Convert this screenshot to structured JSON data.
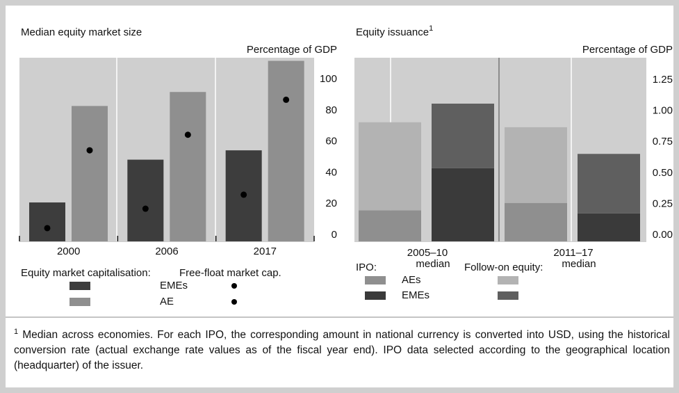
{
  "chart_data": [
    {
      "type": "bar",
      "title": "Median equity market size",
      "unit": "Percentage of GDP",
      "categories": [
        "2000",
        "2006",
        "2017"
      ],
      "series": [
        {
          "name": "EMEs",
          "color": "#3d3d3d",
          "values": [
            25,
            52.5,
            58.5
          ],
          "mark": "bar",
          "slot": 0,
          "group": 0
        },
        {
          "name": "AE",
          "color": "#8f8f8f",
          "values": [
            87,
            96,
            116
          ],
          "mark": "bar",
          "slot": 1,
          "group": 0
        },
        {
          "name": "EMEs",
          "color": "#000000",
          "values": [
            8.5,
            21,
            30
          ],
          "mark": "dot",
          "slot": 0,
          "group": 1
        },
        {
          "name": "AE",
          "color": "#000000",
          "values": [
            58.5,
            68.5,
            91
          ],
          "mark": "dot",
          "slot": 1,
          "group": 1
        }
      ],
      "legend_groups": [
        "Equity market capitalisation:",
        "Free-float market cap."
      ],
      "ylim": [
        0,
        118
      ],
      "yticks": [
        0,
        20,
        40,
        60,
        80,
        100
      ]
    },
    {
      "type": "stacked_bar",
      "title": "Equity issuance",
      "title_note": "1",
      "unit": "Percentage of GDP",
      "categories": [
        [
          "2005–10",
          "median"
        ],
        [
          "2011–17",
          "median"
        ]
      ],
      "series": [
        {
          "name": "AEs",
          "color": "#8f8f8f",
          "values": [
            0.25,
            0.31
          ],
          "slot": 0,
          "group": 0
        },
        {
          "name": "AEs",
          "color": "#b3b3b3",
          "values": [
            0.71,
            0.61
          ],
          "slot": 0,
          "group": 1
        },
        {
          "name": "EMEs",
          "color": "#3a3a3a",
          "values": [
            0.59,
            0.225
          ],
          "slot": 1,
          "group": 0
        },
        {
          "name": "EMEs",
          "color": "#5f5f5f",
          "values": [
            0.52,
            0.48
          ],
          "slot": 1,
          "group": 1
        }
      ],
      "legend_groups": [
        "IPO:",
        "Follow-on equity:"
      ],
      "ylim": [
        0,
        1.48
      ],
      "yticks": [
        {
          "value": 0,
          "label": "0.00"
        },
        0.25,
        {
          "value": 0.5,
          "label": "0.50"
        },
        0.75,
        {
          "value": 1,
          "label": "1.00"
        },
        1.25
      ]
    }
  ],
  "footnote": {
    "marker": "1",
    "text": "Median across economies. For each IPO, the corresponding amount in national currency is converted into USD, using the historical conversion rate (actual exchange rate values as of the fiscal year end). IPO data selected according to the geographical location (headquarter) of the issuer."
  }
}
